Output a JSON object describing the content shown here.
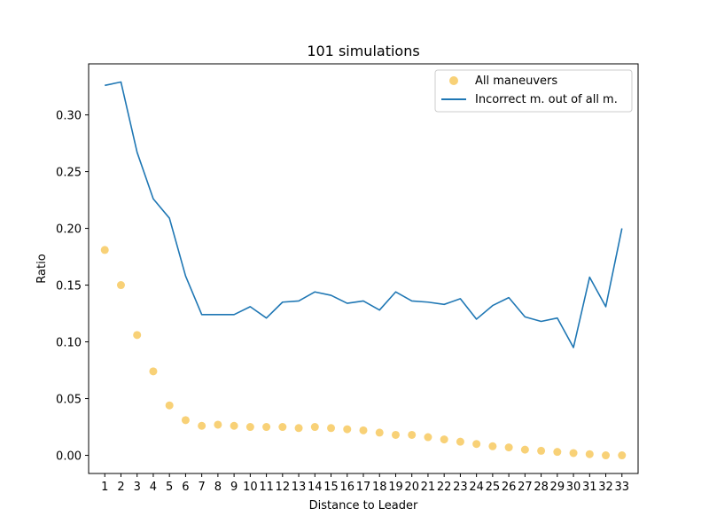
{
  "chart_data": {
    "type": "scatter",
    "title": "101 simulations",
    "xlabel": "Distance to Leader",
    "ylabel": "Ratio",
    "x": [
      1,
      2,
      3,
      4,
      5,
      6,
      7,
      8,
      9,
      10,
      11,
      12,
      13,
      14,
      15,
      16,
      17,
      18,
      19,
      20,
      21,
      22,
      23,
      24,
      25,
      26,
      27,
      28,
      29,
      30,
      31,
      32,
      33
    ],
    "xlim": [
      0,
      34
    ],
    "ylim": [
      -0.016,
      0.345
    ],
    "yticks": [
      0.0,
      0.05,
      0.1,
      0.15,
      0.2,
      0.25,
      0.3
    ],
    "ytick_labels": [
      "0.00",
      "0.05",
      "0.10",
      "0.15",
      "0.20",
      "0.25",
      "0.30"
    ],
    "grid": false,
    "legend_position": "upper right",
    "series": [
      {
        "name": "All maneuvers",
        "kind": "scatter",
        "color": "#f5b82e",
        "values": [
          0.181,
          0.15,
          0.106,
          0.074,
          0.044,
          0.031,
          0.026,
          0.027,
          0.026,
          0.025,
          0.025,
          0.025,
          0.024,
          0.025,
          0.024,
          0.023,
          0.022,
          0.02,
          0.018,
          0.018,
          0.016,
          0.014,
          0.012,
          0.01,
          0.008,
          0.007,
          0.005,
          0.004,
          0.003,
          0.002,
          0.001,
          0.0,
          0.0
        ]
      },
      {
        "name": "Incorrect m. out of all m.",
        "kind": "line",
        "color": "#1f77b4",
        "values": [
          0.326,
          0.329,
          0.267,
          0.226,
          0.209,
          0.158,
          0.124,
          0.124,
          0.124,
          0.131,
          0.121,
          0.135,
          0.136,
          0.144,
          0.141,
          0.134,
          0.136,
          0.128,
          0.144,
          0.136,
          0.135,
          0.133,
          0.138,
          0.12,
          0.132,
          0.139,
          0.122,
          0.118,
          0.121,
          0.095,
          0.157,
          0.131,
          0.2
        ]
      }
    ]
  }
}
